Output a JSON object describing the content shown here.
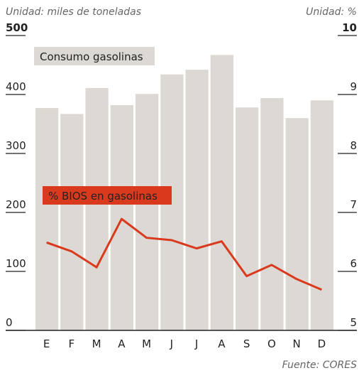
{
  "chart_data": {
    "type": "bar_line",
    "left_note": "Unidad: miles de toneladas",
    "right_note": "Unidad: %",
    "source": "Fuente: CORES",
    "categories": [
      "E",
      "F",
      "M",
      "A",
      "M",
      "J",
      "J",
      "A",
      "S",
      "O",
      "N",
      "D"
    ],
    "series": [
      {
        "name": "Consumo gasolinas",
        "color": "#dcd8d3",
        "values": [
          377,
          367,
          411,
          382,
          401,
          434,
          442,
          467,
          378,
          394,
          360,
          390
        ]
      },
      {
        "name": "% BIOS en gasolinas",
        "color": "#d93a1e",
        "axis": "y2",
        "values": [
          6.49,
          6.34,
          6.07,
          6.89,
          6.57,
          6.53,
          6.39,
          6.51,
          5.92,
          6.11,
          5.87,
          5.69
        ]
      }
    ],
    "ylim": [
      0,
      500
    ],
    "yticks": [
      0,
      100,
      200,
      300,
      400,
      500
    ],
    "y2lim": [
      5,
      10
    ],
    "y2ticks": [
      5,
      6,
      7,
      8,
      9,
      10
    ]
  }
}
